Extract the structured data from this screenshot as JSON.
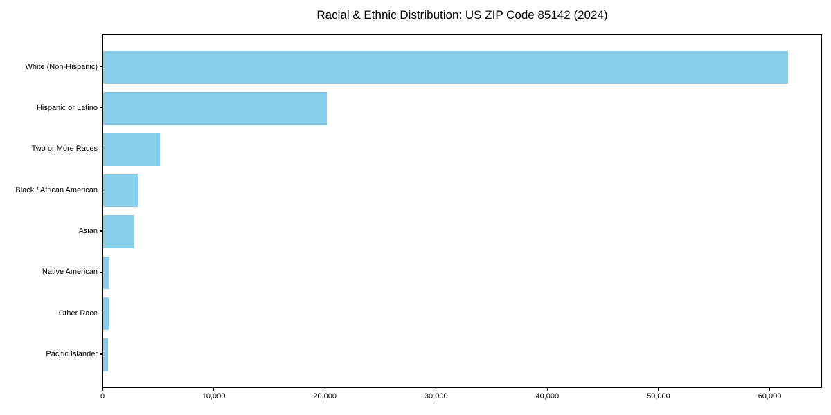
{
  "chart_data": {
    "type": "bar",
    "orientation": "horizontal",
    "title": "Racial & Ethnic Distribution: US ZIP Code 85142 (2024)",
    "categories": [
      "White (Non-Hispanic)",
      "Hispanic or Latino",
      "Two or More Races",
      "Black / African American",
      "Asian",
      "Native American",
      "Other Race",
      "Pacific Islander"
    ],
    "values": [
      61600,
      20100,
      5100,
      3100,
      2800,
      530,
      520,
      440
    ],
    "xlabel": "",
    "ylabel": "",
    "xlim": [
      0,
      64700
    ],
    "xticks": [
      0,
      10000,
      20000,
      30000,
      40000,
      50000,
      60000
    ],
    "xtick_labels": [
      "0",
      "10,000",
      "20,000",
      "30,000",
      "40,000",
      "50,000",
      "60,000"
    ],
    "bar_color": "#87CEEB",
    "axis_color": "#000000",
    "text_color": "#000000",
    "grid": false,
    "legend": false
  }
}
